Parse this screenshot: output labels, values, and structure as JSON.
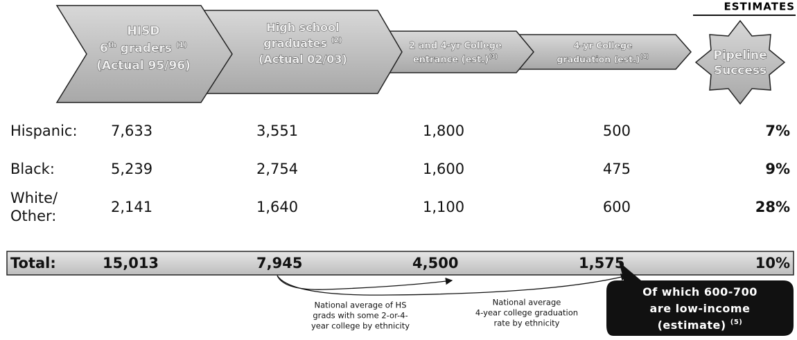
{
  "header": {
    "estimates": "ESTIMATES"
  },
  "stages": [
    {
      "lines": [
        [
          {
            "text": "HISD"
          }
        ],
        [
          {
            "text": "6"
          },
          {
            "text": "th",
            "sup": true
          },
          {
            "text": " graders "
          },
          {
            "text": "(1)",
            "sup": true
          }
        ],
        [
          {
            "text": "(Actual 95/96)"
          }
        ]
      ]
    },
    {
      "lines": [
        [
          {
            "text": "High school"
          }
        ],
        [
          {
            "text": "graduates "
          },
          {
            "text": "(2)",
            "sup": true
          }
        ],
        [
          {
            "text": "(Actual 02/03)"
          }
        ]
      ]
    },
    {
      "lines": [
        [
          {
            "text": "2 and 4-yr College"
          }
        ],
        [
          {
            "text": "entrance (est.)"
          },
          {
            "text": "(3)",
            "sup": true
          }
        ]
      ]
    },
    {
      "lines": [
        [
          {
            "text": "4-yr College"
          }
        ],
        [
          {
            "text": "graduation (est.)"
          },
          {
            "text": "(4)",
            "sup": true
          }
        ]
      ]
    }
  ],
  "pipeline_success": {
    "lines": [
      "Pipeline",
      "Success"
    ]
  },
  "rows": [
    {
      "label": [
        "Hispanic:"
      ],
      "values": [
        "7,633",
        "3,551",
        "1,800",
        "500",
        "7%"
      ]
    },
    {
      "label": [
        "Black:"
      ],
      "values": [
        "5,239",
        "2,754",
        "1,600",
        "475",
        "9%"
      ]
    },
    {
      "label": [
        "White/",
        "Other:"
      ],
      "values": [
        "2,141",
        "1,640",
        "1,100",
        "600",
        "28%"
      ]
    }
  ],
  "total": {
    "label": "Total:",
    "values": [
      "15,013",
      "7,945",
      "4,500",
      "1,575",
      "10%"
    ]
  },
  "callout": {
    "lines": [
      [
        {
          "text": "Of which 600-700"
        }
      ],
      [
        {
          "text": "are low-income"
        }
      ],
      [
        {
          "text": "(estimate) "
        },
        {
          "text": "(5)",
          "sup": true
        }
      ]
    ]
  },
  "notes": [
    {
      "lines": [
        "National average of HS",
        "grads with some 2-or-4-",
        "year college by ethnicity"
      ]
    },
    {
      "lines": [
        "National average",
        "4-year college graduation",
        "rate by ethnicity"
      ]
    }
  ]
}
